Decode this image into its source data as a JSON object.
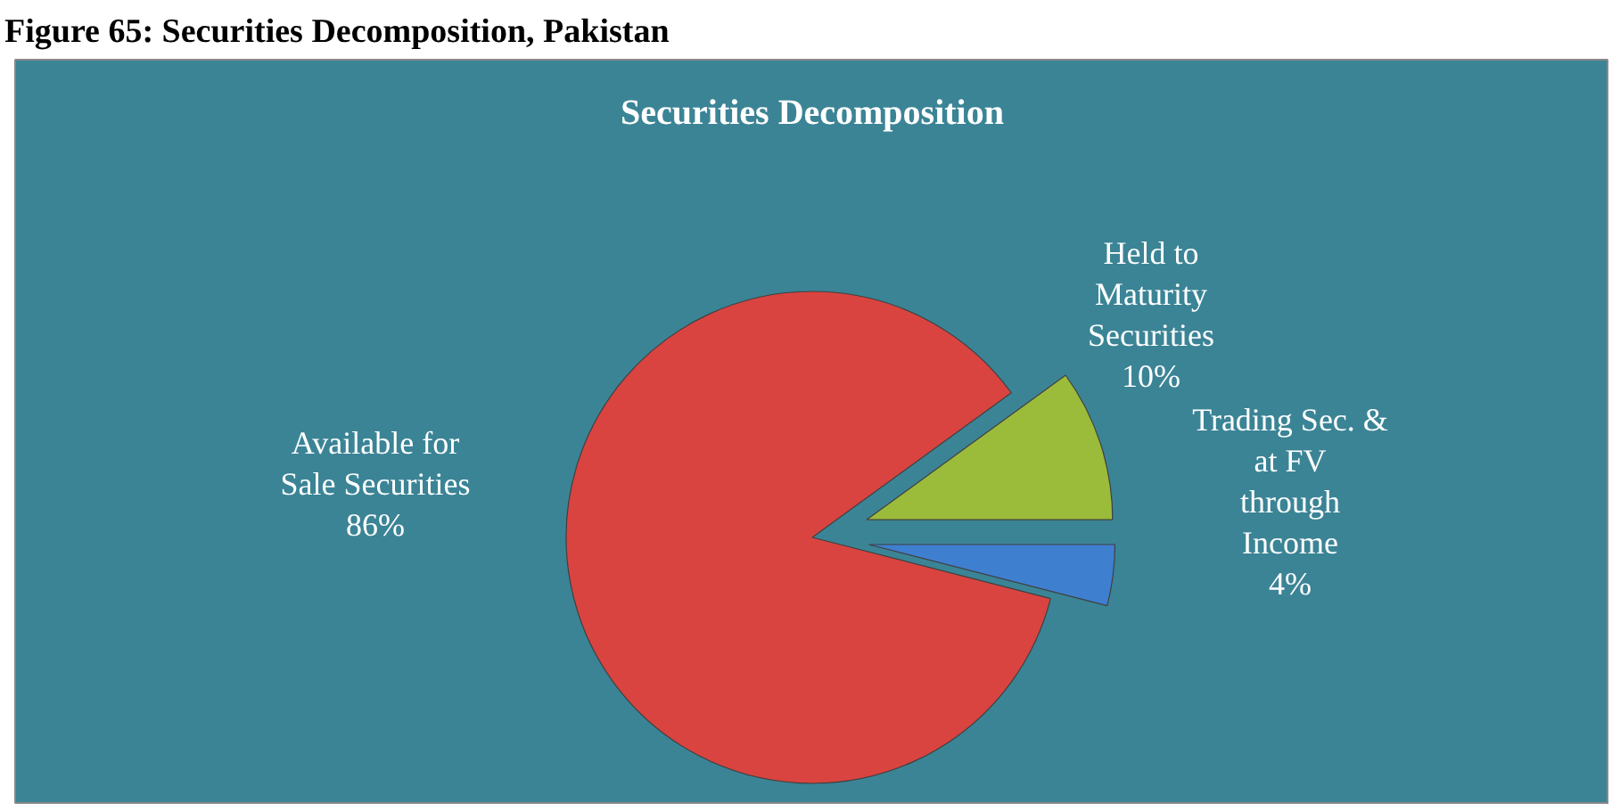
{
  "chart_data": {
    "type": "pie",
    "title": "Figure 65: Securities Decomposition, Pakistan",
    "subtitle": "Securities Decomposition",
    "categories": [
      "Available for\nSale Securities",
      "Held to\nMaturity\nSecurities",
      "Trading Sec. &\nat FV\nthrough\nIncome"
    ],
    "values": [
      86,
      10,
      4
    ],
    "colors": [
      "#d94440",
      "#9bbb3b",
      "#3f7fd0"
    ],
    "value_labels": [
      "86%",
      "10%",
      "4%"
    ]
  }
}
